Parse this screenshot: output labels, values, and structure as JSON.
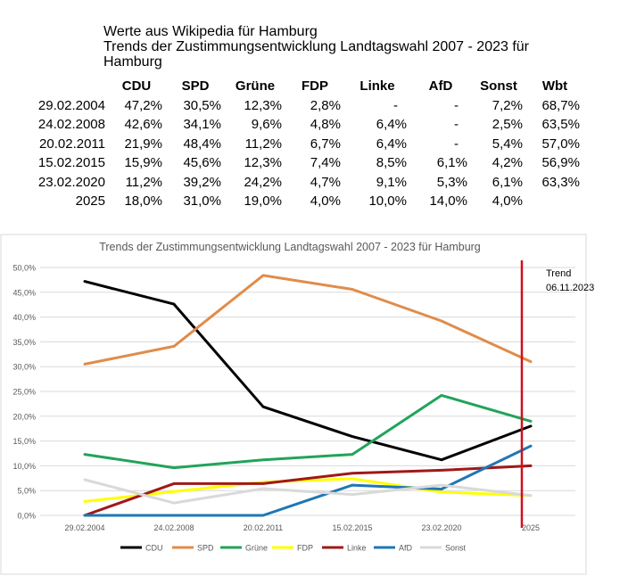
{
  "header": {
    "line1": "Werte aus Wikipedia für Hamburg",
    "line2": "Trends der Zustimmungsentwicklung Landtagswahl 2007 - 2023 für",
    "line3": "Hamburg"
  },
  "table": {
    "columns": [
      "CDU",
      "SPD",
      "Grüne",
      "FDP",
      "Linke",
      "AfD",
      "Sonst",
      "Wbt"
    ],
    "rows": [
      {
        "date": "29.02.2004",
        "values": [
          "47,2%",
          "30,5%",
          "12,3%",
          "2,8%",
          "-",
          "-",
          "7,2%",
          "68,7%"
        ]
      },
      {
        "date": "24.02.2008",
        "values": [
          "42,6%",
          "34,1%",
          "9,6%",
          "4,8%",
          "6,4%",
          "-",
          "2,5%",
          "63,5%"
        ]
      },
      {
        "date": "20.02.2011",
        "values": [
          "21,9%",
          "48,4%",
          "11,2%",
          "6,7%",
          "6,4%",
          "-",
          "5,4%",
          "57,0%"
        ]
      },
      {
        "date": "15.02.2015",
        "values": [
          "15,9%",
          "45,6%",
          "12,3%",
          "7,4%",
          "8,5%",
          "6,1%",
          "4,2%",
          "56,9%"
        ]
      },
      {
        "date": "23.02.2020",
        "values": [
          "11,2%",
          "39,2%",
          "24,2%",
          "4,7%",
          "9,1%",
          "5,3%",
          "6,1%",
          "63,3%"
        ]
      },
      {
        "date": "2025",
        "values": [
          "18,0%",
          "31,0%",
          "19,0%",
          "4,0%",
          "10,0%",
          "14,0%",
          "4,0%",
          ""
        ]
      }
    ]
  },
  "chart_data": {
    "type": "line",
    "title": "Trends der Zustimmungsentwicklung Landtagswahl 2007 - 2023 für Hamburg",
    "categories": [
      "29.02.2004",
      "24.02.2008",
      "20.02.2011",
      "15.02.2015",
      "23.02.2020",
      "2025"
    ],
    "ylim": [
      0,
      50
    ],
    "yticks": [
      "0,0%",
      "5,0%",
      "10,0%",
      "15,0%",
      "20,0%",
      "25,0%",
      "30,0%",
      "35,0%",
      "40,0%",
      "45,0%",
      "50,0%"
    ],
    "grid": true,
    "legend": "bottom",
    "series": [
      {
        "name": "CDU",
        "color": "#000000",
        "values": [
          47.2,
          42.6,
          21.9,
          15.9,
          11.2,
          18.0
        ]
      },
      {
        "name": "SPD",
        "color": "#E08C4A",
        "values": [
          30.5,
          34.1,
          48.4,
          45.6,
          39.2,
          31.0
        ]
      },
      {
        "name": "Grüne",
        "color": "#22A35A",
        "values": [
          12.3,
          9.6,
          11.2,
          12.3,
          24.2,
          19.0
        ]
      },
      {
        "name": "FDP",
        "color": "#FFFF00",
        "values": [
          2.8,
          4.8,
          6.7,
          7.4,
          4.7,
          4.0
        ]
      },
      {
        "name": "Linke",
        "color": "#A01818",
        "values": [
          0,
          6.4,
          6.4,
          8.5,
          9.1,
          10.0
        ]
      },
      {
        "name": "AfD",
        "color": "#1F77B4",
        "values": [
          0,
          0,
          0,
          6.1,
          5.3,
          14.0
        ]
      },
      {
        "name": "Sonst",
        "color": "#D9D9D9",
        "values": [
          7.2,
          2.5,
          5.4,
          4.2,
          6.1,
          4.0
        ]
      }
    ],
    "annotation": {
      "lines": [
        "Trend",
        "06.11.2023"
      ],
      "marker_color": "#D0101A",
      "marker_position": 4.9
    }
  }
}
